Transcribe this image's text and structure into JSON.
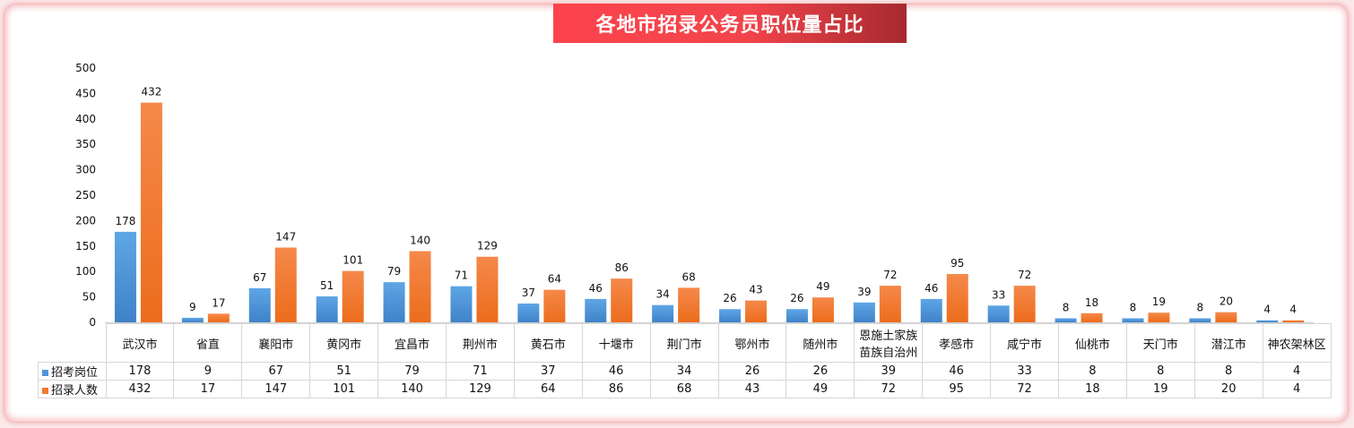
{
  "colors": {
    "series1": "#4f94d8",
    "series2": "#f37a2a",
    "title_bg": "#f2444b"
  },
  "chart_data": {
    "type": "bar",
    "title": "各地市招录公务员职位量占比",
    "categories": [
      "武汉市",
      "省直",
      "襄阳市",
      "黄冈市",
      "宜昌市",
      "荆州市",
      "黄石市",
      "十堰市",
      "荆门市",
      "鄂州市",
      "随州市",
      "恩施土家族苗族自治州",
      "孝感市",
      "咸宁市",
      "仙桃市",
      "天门市",
      "潜江市",
      "神农架林区"
    ],
    "category_lines": [
      [
        "武汉市"
      ],
      [
        "省直"
      ],
      [
        "襄阳市"
      ],
      [
        "黄冈市"
      ],
      [
        "宜昌市"
      ],
      [
        "荆州市"
      ],
      [
        "黄石市"
      ],
      [
        "十堰市"
      ],
      [
        "荆门市"
      ],
      [
        "鄂州市"
      ],
      [
        "随州市"
      ],
      [
        "恩施土家族",
        "苗族自治州"
      ],
      [
        "孝感市"
      ],
      [
        "咸宁市"
      ],
      [
        "仙桃市"
      ],
      [
        "天门市"
      ],
      [
        "潜江市"
      ],
      [
        "神农架林区"
      ]
    ],
    "series": [
      {
        "name": "招考岗位",
        "values": [
          178,
          9,
          67,
          51,
          79,
          71,
          37,
          46,
          34,
          26,
          26,
          39,
          46,
          33,
          8,
          8,
          8,
          4
        ]
      },
      {
        "name": "招录人数",
        "values": [
          432,
          17,
          147,
          101,
          140,
          129,
          64,
          86,
          68,
          43,
          49,
          72,
          95,
          72,
          18,
          19,
          20,
          4
        ]
      }
    ],
    "ylim": [
      0,
      500
    ],
    "yticks": [
      0,
      50,
      100,
      150,
      200,
      250,
      300,
      350,
      400,
      450,
      500
    ],
    "grid": false,
    "legend": "data-table"
  }
}
